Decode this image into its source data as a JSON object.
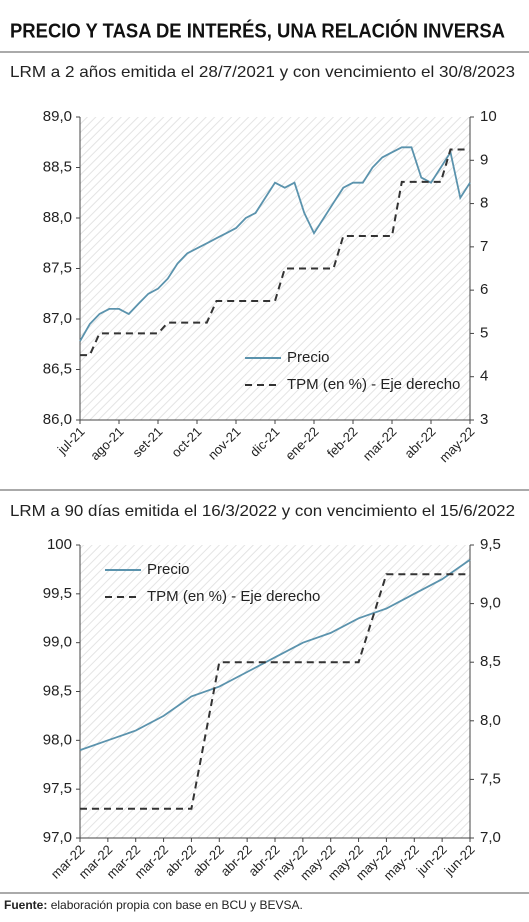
{
  "title": "PRECIO Y TASA DE INTERÉS, UNA RELACIÓN INVERSA",
  "chart_data": [
    {
      "type": "line",
      "title": "LRM a 2 años emitida el 28/7/2021 y con vencimiento el 30/8/2023",
      "categories": [
        "jul-21",
        null,
        null,
        null,
        "ago-21",
        null,
        null,
        null,
        "set-21",
        null,
        null,
        null,
        "oct-21",
        null,
        null,
        null,
        "nov-21",
        null,
        null,
        null,
        "dic-21",
        null,
        null,
        null,
        "ene-22",
        null,
        null,
        null,
        "feb-22",
        null,
        null,
        null,
        "mar-22",
        null,
        null,
        null,
        "abr-22",
        null,
        null,
        null,
        "may-22"
      ],
      "ylim": [
        86,
        89
      ],
      "yticks": [
        {
          "value": 86,
          "label": "86,0"
        },
        {
          "value": 86.5,
          "label": "86,5"
        },
        {
          "value": 87,
          "label": "87,0"
        },
        {
          "value": 87.5,
          "label": "87,5"
        },
        {
          "value": 88,
          "label": "88,0"
        },
        {
          "value": 88.5,
          "label": "88,5"
        },
        {
          "value": 89,
          "label": "89,0"
        }
      ],
      "y2lim": [
        3,
        10
      ],
      "y2ticks": [
        3,
        4,
        5,
        6,
        7,
        8,
        9,
        10
      ],
      "legend": "lower-right",
      "series": [
        {
          "name": "Precio",
          "color": "#5b93ad",
          "style": "solid",
          "values": [
            86.78,
            86.95,
            87.05,
            87.1,
            87.1,
            87.05,
            87.15,
            87.25,
            87.3,
            87.4,
            87.55,
            87.65,
            87.7,
            87.75,
            87.8,
            87.85,
            87.9,
            88.0,
            88.05,
            88.2,
            88.35,
            88.3,
            88.35,
            88.05,
            87.85,
            88.0,
            88.15,
            88.3,
            88.35,
            88.35,
            88.5,
            88.6,
            88.65,
            88.7,
            88.7,
            88.4,
            88.35,
            88.5,
            88.65,
            88.2,
            88.35
          ]
        },
        {
          "name": "TPM (en %) - Eje derecho",
          "color": "#333333",
          "style": "dashed",
          "axis": "y2",
          "values": [
            4.5,
            4.5,
            5.0,
            5.0,
            5.0,
            5.0,
            5.0,
            5.0,
            5.0,
            5.25,
            5.25,
            5.25,
            5.25,
            5.25,
            5.75,
            5.75,
            5.75,
            5.75,
            5.75,
            5.75,
            5.75,
            6.5,
            6.5,
            6.5,
            6.5,
            6.5,
            6.5,
            7.25,
            7.25,
            7.25,
            7.25,
            7.25,
            7.25,
            8.5,
            8.5,
            8.5,
            8.5,
            8.5,
            9.25,
            9.25,
            9.25
          ]
        }
      ]
    },
    {
      "type": "line",
      "title": "LRM a 90 días emitida el 16/3/2022 y con vencimiento el 15/6/2022",
      "categories": [
        "mar-22",
        "mar-22",
        "mar-22",
        "mar-22",
        "abr-22",
        "abr-22",
        "abr-22",
        "abr-22",
        "may-22",
        "may-22",
        "may-22",
        "may-22",
        "may-22",
        "jun-22",
        "jun-22"
      ],
      "ylim": [
        97,
        100
      ],
      "yticks": [
        {
          "value": 97,
          "label": "97,0"
        },
        {
          "value": 97.5,
          "label": "97,5"
        },
        {
          "value": 98,
          "label": "98,0"
        },
        {
          "value": 98.5,
          "label": "98,5"
        },
        {
          "value": 99,
          "label": "99,0"
        },
        {
          "value": 99.5,
          "label": "99,5"
        },
        100
      ],
      "y2lim": [
        7,
        9.5
      ],
      "y2ticks": [
        {
          "value": 7,
          "label": "7,0"
        },
        {
          "value": 7.5,
          "label": "7,5"
        },
        {
          "value": 8,
          "label": "8,0"
        },
        {
          "value": 8.5,
          "label": "8,5"
        },
        {
          "value": 9,
          "label": "9,0"
        },
        {
          "value": 9.5,
          "label": "9,5"
        }
      ],
      "legend": "upper-left",
      "series": [
        {
          "name": "Precio",
          "color": "#5b93ad",
          "style": "solid",
          "values": [
            97.9,
            98.0,
            98.1,
            98.25,
            98.45,
            98.55,
            98.7,
            98.85,
            99.0,
            99.1,
            99.25,
            99.35,
            99.5,
            99.65,
            99.85
          ]
        },
        {
          "name": "TPM (en %) - Eje derecho",
          "color": "#333333",
          "style": "dashed",
          "axis": "y2",
          "values": [
            7.25,
            7.25,
            7.25,
            7.25,
            7.25,
            8.5,
            8.5,
            8.5,
            8.5,
            8.5,
            8.5,
            9.25,
            9.25,
            9.25,
            9.25
          ]
        }
      ]
    }
  ],
  "source_label": "Fuente:",
  "source": "elaboración propia con base en BCU y BEVSA."
}
